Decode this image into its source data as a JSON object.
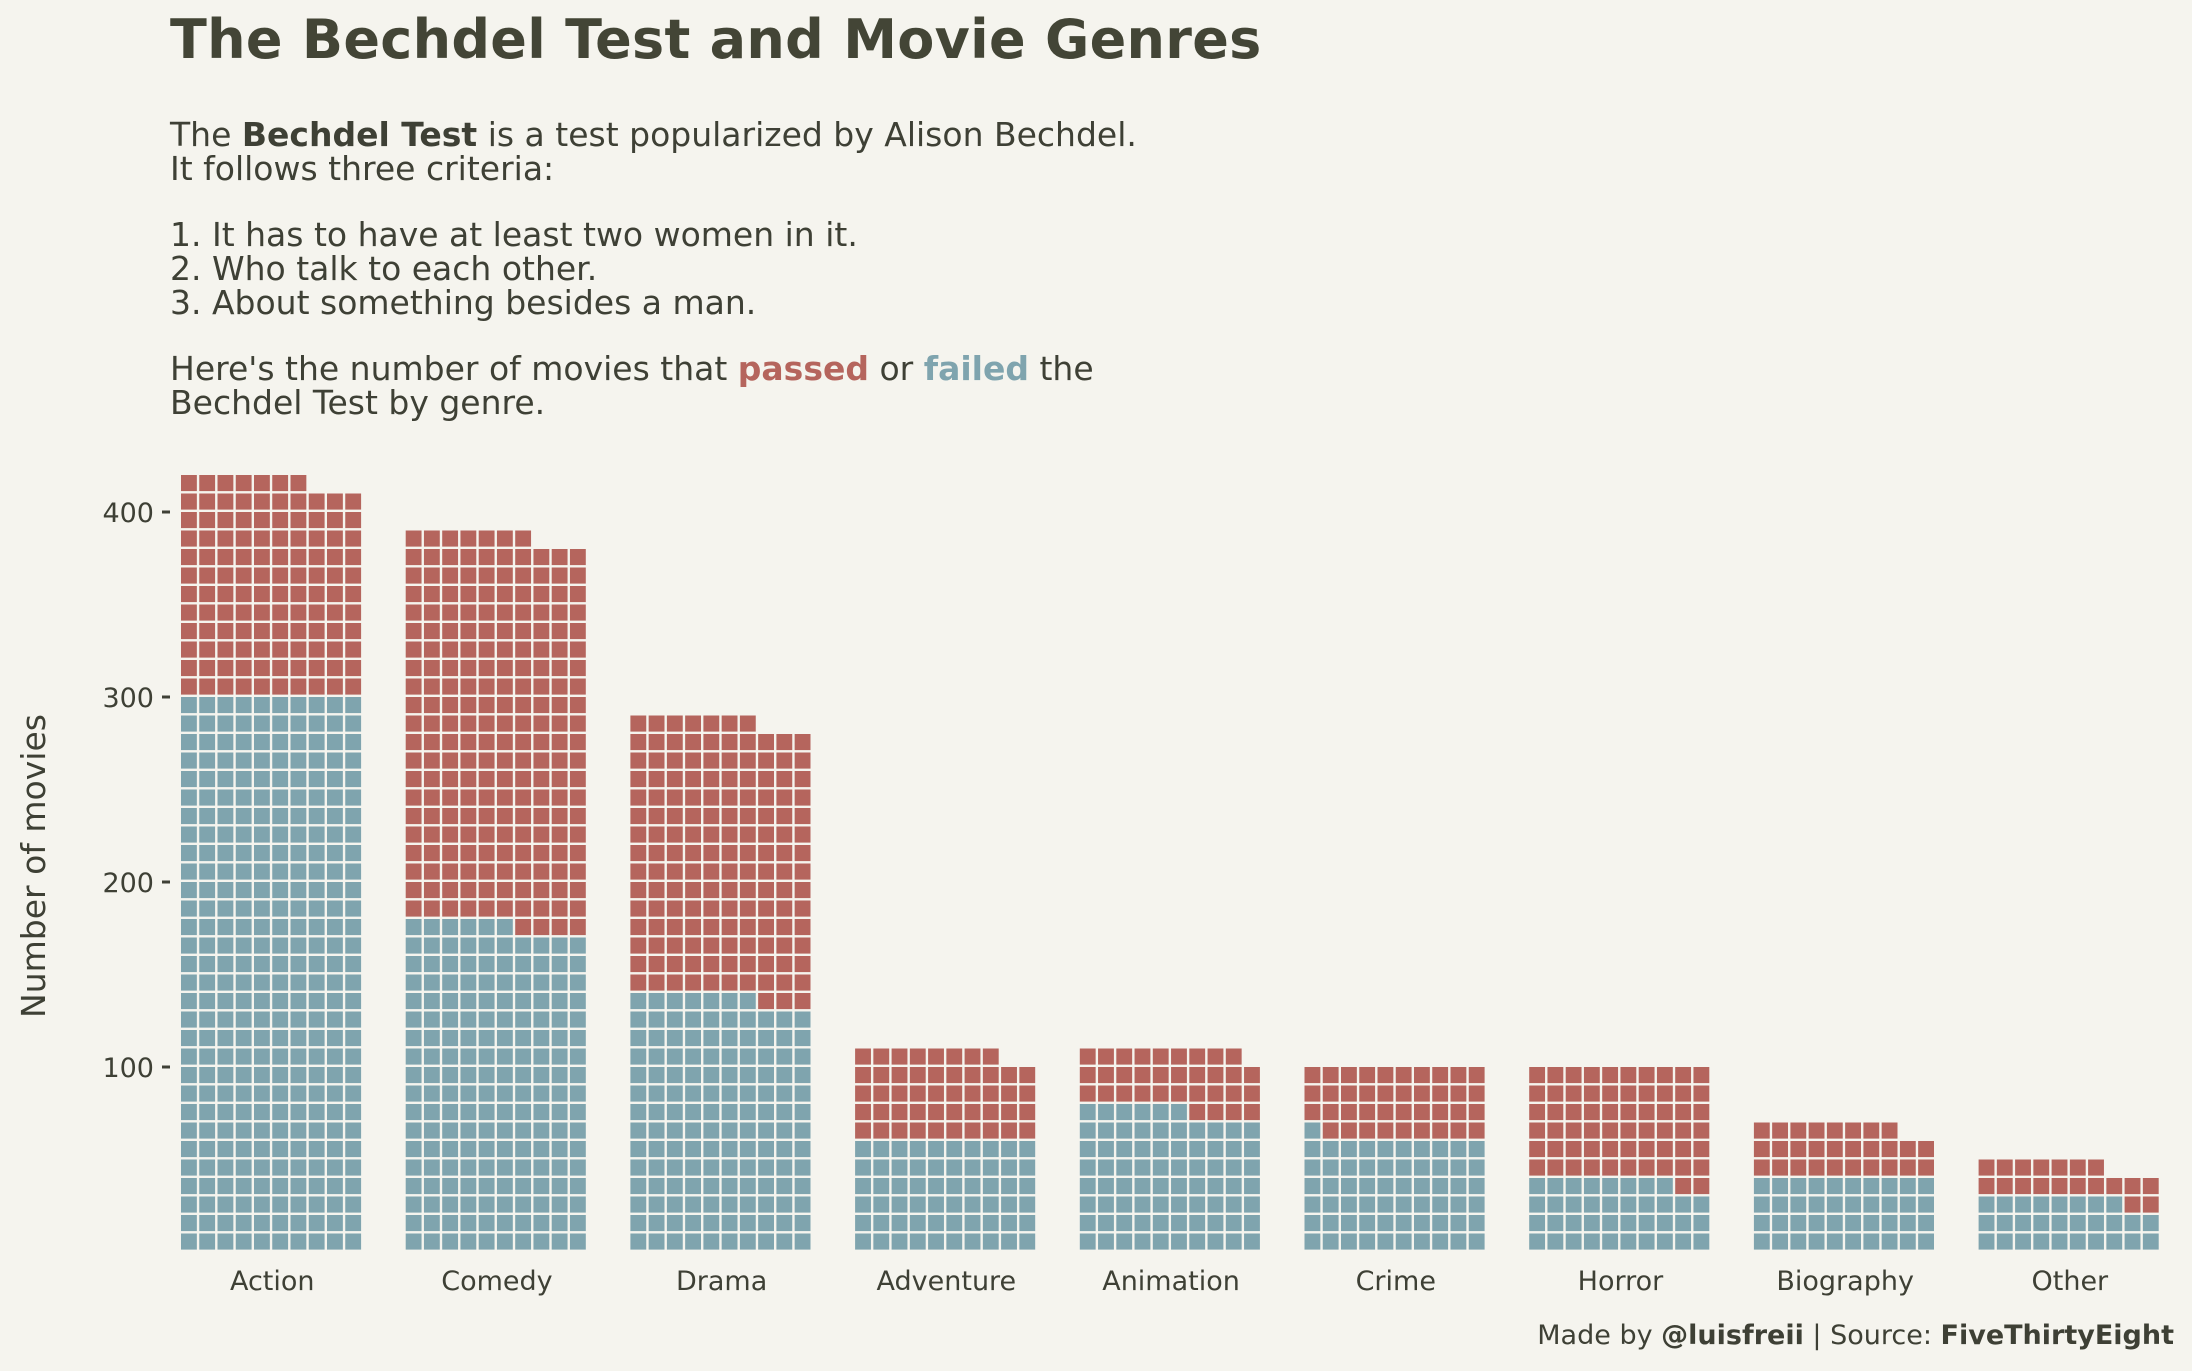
{
  "title": "The Bechdel Test and Movie Genres",
  "subtitle": {
    "line1_pre": "The ",
    "line1_bold": "Bechdel Test",
    "line1_post": " is a test popularized by Alison Bechdel.",
    "line2": "It follows three criteria:",
    "criteria": [
      "1. It has to have at least two women in it.",
      "2. Who talk to each other.",
      "3. About something besides a man."
    ],
    "line_pre": "Here's the number of movies that ",
    "passed_word": "passed",
    "or_word": " or ",
    "failed_word": "failed",
    "line_post": " the",
    "line_last": "Bechdel Test by genre."
  },
  "caption": {
    "made_by": "Made by ",
    "author": "@luisfreii",
    "separator": " | Source: ",
    "source": "FiveThirtyEight"
  },
  "colors": {
    "passed": "#b5655d",
    "failed": "#7fa4ae",
    "background": "#f5f4ee",
    "text": "#3e4035"
  },
  "chart_data": {
    "type": "bar",
    "subtype": "stacked waffle (each square = 1 movie, 10 squares per row)",
    "ylabel": "Number of movies",
    "xlabel": "",
    "ylim": [
      0,
      420
    ],
    "yticks": [
      100,
      200,
      300,
      400
    ],
    "grid": false,
    "categories": [
      "Action",
      "Comedy",
      "Drama",
      "Adventure",
      "Animation",
      "Crime",
      "Horror",
      "Biography",
      "Other"
    ],
    "series": [
      {
        "name": "failed",
        "values": [
          300,
          176,
          137,
          60,
          76,
          61,
          38,
          40,
          28
        ]
      },
      {
        "name": "passed",
        "values": [
          117,
          211,
          150,
          48,
          33,
          39,
          62,
          28,
          19
        ]
      }
    ],
    "totals": [
      417,
      387,
      287,
      108,
      109,
      100,
      100,
      68,
      47
    ]
  }
}
